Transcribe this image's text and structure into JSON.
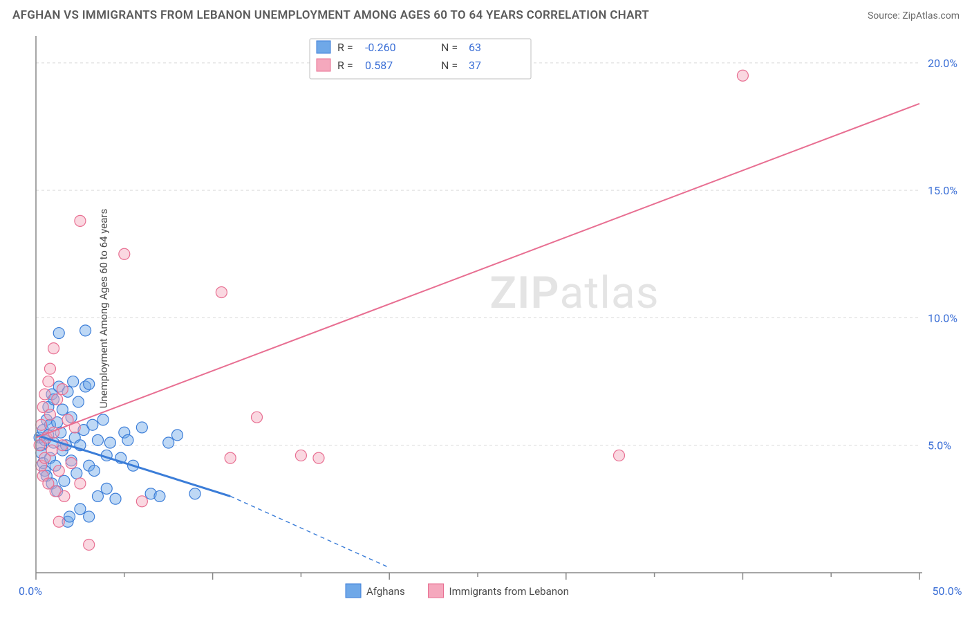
{
  "title": "AFGHAN VS IMMIGRANTS FROM LEBANON UNEMPLOYMENT AMONG AGES 60 TO 64 YEARS CORRELATION CHART",
  "source": "Source: ZipAtlas.com",
  "ylabel": "Unemployment Among Ages 60 to 64 years",
  "watermark_a": "ZIP",
  "watermark_b": "atlas",
  "chart": {
    "type": "scatter",
    "background_color": "#ffffff",
    "grid_color": "#d9d9d9",
    "axis_color": "#888888",
    "xlim": [
      0,
      50
    ],
    "ylim": [
      0,
      21
    ],
    "xticks_major": [
      0,
      10,
      20,
      30,
      40,
      50
    ],
    "xticks_minor": [
      5,
      15,
      25,
      35,
      45
    ],
    "yticks": [
      5,
      10,
      15,
      20
    ],
    "xtick_labels": {
      "first": "0.0%",
      "last": "50.0%"
    },
    "ytick_labels": [
      "5.0%",
      "10.0%",
      "15.0%",
      "20.0%"
    ],
    "marker_radius": 8,
    "series": [
      {
        "name": "Afghans",
        "color_fill": "#6fa8e8",
        "color_stroke": "#3b7dd8",
        "R": "-0.260",
        "N": "63",
        "regression": {
          "x1": 0,
          "y1": 5.4,
          "x2": 11,
          "y2": 3.0,
          "dash_x2": 20,
          "dash_y2": 0.2,
          "solid_width": 3
        },
        "points": [
          [
            0.2,
            5.3
          ],
          [
            0.3,
            5.0
          ],
          [
            0.3,
            4.7
          ],
          [
            0.4,
            5.6
          ],
          [
            0.4,
            4.3
          ],
          [
            0.5,
            5.2
          ],
          [
            0.5,
            4.0
          ],
          [
            0.6,
            6.0
          ],
          [
            0.6,
            3.8
          ],
          [
            0.7,
            5.4
          ],
          [
            0.7,
            6.5
          ],
          [
            0.8,
            5.8
          ],
          [
            0.8,
            4.5
          ],
          [
            0.9,
            7.0
          ],
          [
            0.9,
            3.5
          ],
          [
            1.0,
            5.1
          ],
          [
            1.0,
            6.8
          ],
          [
            1.1,
            4.2
          ],
          [
            1.2,
            5.9
          ],
          [
            1.2,
            3.2
          ],
          [
            1.3,
            7.3
          ],
          [
            1.4,
            5.5
          ],
          [
            1.5,
            4.8
          ],
          [
            1.5,
            6.4
          ],
          [
            1.6,
            3.6
          ],
          [
            1.7,
            5.0
          ],
          [
            1.8,
            7.1
          ],
          [
            1.8,
            2.0
          ],
          [
            1.9,
            2.2
          ],
          [
            2.0,
            6.1
          ],
          [
            2.0,
            4.4
          ],
          [
            2.1,
            7.5
          ],
          [
            2.2,
            5.3
          ],
          [
            2.3,
            3.9
          ],
          [
            2.4,
            6.7
          ],
          [
            2.5,
            5.0
          ],
          [
            2.5,
            2.5
          ],
          [
            2.7,
            5.6
          ],
          [
            2.8,
            7.3
          ],
          [
            3.0,
            4.2
          ],
          [
            3.0,
            7.4
          ],
          [
            3.2,
            5.8
          ],
          [
            3.3,
            4.0
          ],
          [
            3.5,
            5.2
          ],
          [
            3.5,
            3.0
          ],
          [
            3.8,
            6.0
          ],
          [
            4.0,
            4.6
          ],
          [
            4.0,
            3.3
          ],
          [
            4.2,
            5.1
          ],
          [
            4.5,
            2.9
          ],
          [
            4.8,
            4.5
          ],
          [
            5.0,
            5.5
          ],
          [
            5.2,
            5.2
          ],
          [
            5.5,
            4.2
          ],
          [
            6.0,
            5.7
          ],
          [
            6.5,
            3.1
          ],
          [
            7.0,
            3.0
          ],
          [
            7.5,
            5.1
          ],
          [
            8.0,
            5.4
          ],
          [
            9.0,
            3.1
          ],
          [
            2.8,
            9.5
          ],
          [
            1.3,
            9.4
          ],
          [
            3.0,
            2.2
          ]
        ]
      },
      {
        "name": "Immigrants from Lebanon",
        "color_fill": "#f5a8bd",
        "color_stroke": "#e86f92",
        "R": "0.587",
        "N": "37",
        "regression": {
          "x1": 0,
          "y1": 5.3,
          "x2": 50,
          "y2": 18.4,
          "solid_width": 2
        },
        "points": [
          [
            0.2,
            5.0
          ],
          [
            0.3,
            4.2
          ],
          [
            0.3,
            5.8
          ],
          [
            0.4,
            6.5
          ],
          [
            0.4,
            3.8
          ],
          [
            0.5,
            7.0
          ],
          [
            0.5,
            4.5
          ],
          [
            0.6,
            5.3
          ],
          [
            0.7,
            7.5
          ],
          [
            0.7,
            3.5
          ],
          [
            0.8,
            6.2
          ],
          [
            0.8,
            8.0
          ],
          [
            0.9,
            4.8
          ],
          [
            1.0,
            5.5
          ],
          [
            1.0,
            8.8
          ],
          [
            1.1,
            3.2
          ],
          [
            1.2,
            6.8
          ],
          [
            1.3,
            4.0
          ],
          [
            1.3,
            2.0
          ],
          [
            1.5,
            7.2
          ],
          [
            1.5,
            5.0
          ],
          [
            1.6,
            3.0
          ],
          [
            1.8,
            6.0
          ],
          [
            2.0,
            4.3
          ],
          [
            2.2,
            5.7
          ],
          [
            2.5,
            13.8
          ],
          [
            2.5,
            3.5
          ],
          [
            3.0,
            1.1
          ],
          [
            5.0,
            12.5
          ],
          [
            6.0,
            2.8
          ],
          [
            10.5,
            11.0
          ],
          [
            11.0,
            4.5
          ],
          [
            12.5,
            6.1
          ],
          [
            15.0,
            4.6
          ],
          [
            16.0,
            4.5
          ],
          [
            33.0,
            4.6
          ],
          [
            40.0,
            19.5
          ]
        ]
      }
    ]
  }
}
